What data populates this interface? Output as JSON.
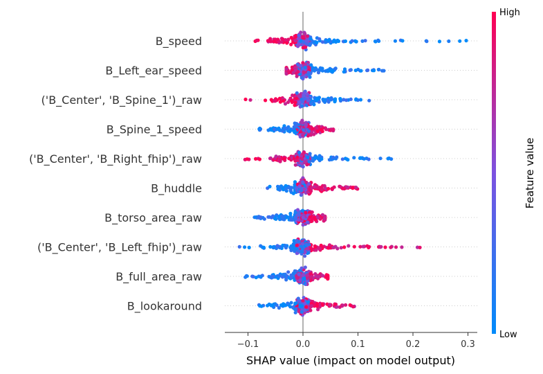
{
  "chart_data": {
    "type": "scatter",
    "subtype": "shap-beeswarm",
    "xlabel": "SHAP value (impact on model output)",
    "xlim": [
      -0.14,
      0.32
    ],
    "xticks": [
      -0.1,
      0.0,
      0.1,
      0.2,
      0.3
    ],
    "xtick_labels": [
      "−0.1",
      "0.0",
      "0.1",
      "0.2",
      "0.3"
    ],
    "grid": false,
    "colorbar": {
      "title": "Feature value",
      "high_label": "High",
      "low_label": "Low",
      "low_color": "#008bfb",
      "high_color": "#ff0052"
    },
    "features": [
      {
        "name": "B_speed",
        "min": -0.095,
        "max": 0.3,
        "low_side": "positive",
        "neg_extent": 0.095,
        "pos_extent": 0.3,
        "seed": 11
      },
      {
        "name": "B_Left_ear_speed",
        "min": -0.03,
        "max": 0.16,
        "low_side": "positive",
        "neg_extent": 0.03,
        "pos_extent": 0.16,
        "seed": 23
      },
      {
        "name": "('B_Center', 'B_Spine_1')_raw",
        "min": -0.115,
        "max": 0.14,
        "low_side": "positive",
        "neg_extent": 0.115,
        "pos_extent": 0.14,
        "seed": 37
      },
      {
        "name": "B_Spine_1_speed",
        "min": -0.09,
        "max": 0.055,
        "low_side": "negative",
        "neg_extent": 0.09,
        "pos_extent": 0.055,
        "seed": 41
      },
      {
        "name": "('B_Center', 'B_Right_fhip')_raw",
        "min": -0.11,
        "max": 0.165,
        "low_side": "positive",
        "neg_extent": 0.11,
        "pos_extent": 0.165,
        "seed": 53
      },
      {
        "name": "B_huddle",
        "min": -0.065,
        "max": 0.105,
        "low_side": "negative",
        "neg_extent": 0.065,
        "pos_extent": 0.105,
        "seed": 67
      },
      {
        "name": "B_torso_area_raw",
        "min": -0.09,
        "max": 0.04,
        "low_side": "negative",
        "neg_extent": 0.09,
        "pos_extent": 0.04,
        "seed": 71
      },
      {
        "name": "('B_Center', 'B_Left_fhip')_raw",
        "min": -0.12,
        "max": 0.22,
        "low_side": "negative",
        "neg_extent": 0.12,
        "pos_extent": 0.22,
        "seed": 83
      },
      {
        "name": "B_full_area_raw",
        "min": -0.105,
        "max": 0.045,
        "low_side": "negative",
        "neg_extent": 0.105,
        "pos_extent": 0.045,
        "seed": 97
      },
      {
        "name": "B_lookaround",
        "min": -0.09,
        "max": 0.1,
        "low_side": "negative",
        "neg_extent": 0.09,
        "pos_extent": 0.1,
        "seed": 101
      }
    ]
  }
}
